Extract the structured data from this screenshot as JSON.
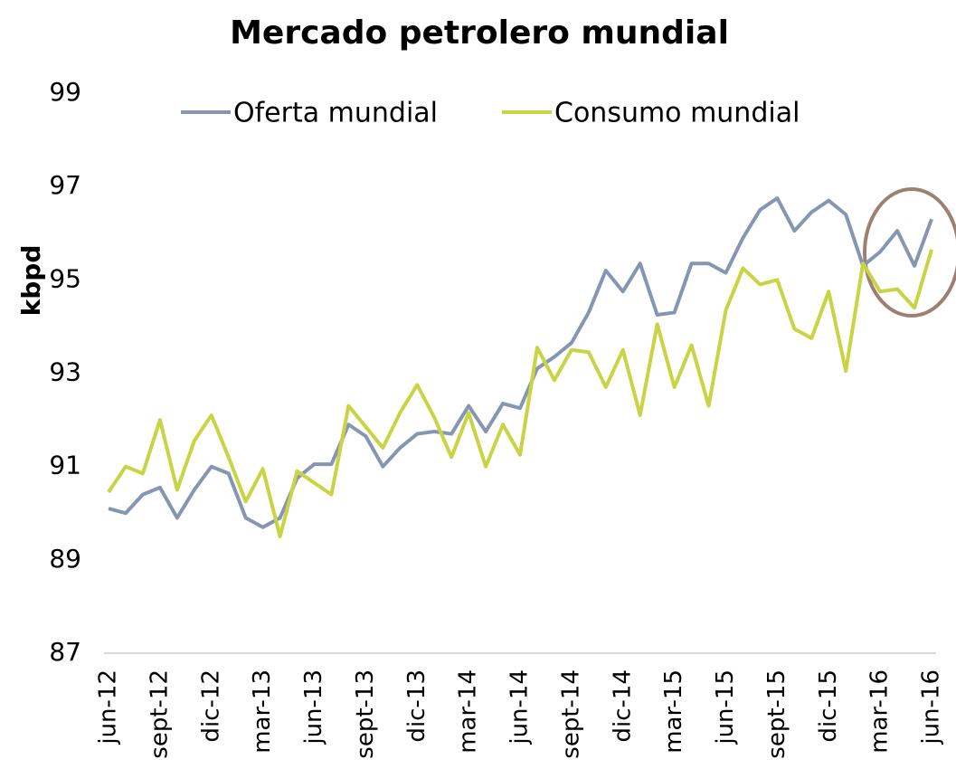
{
  "chart_data": {
    "type": "line",
    "title": "Mercado petrolero mundial",
    "y_label": "kbpd",
    "categories": [
      "jun-12",
      null,
      null,
      "sept-12",
      null,
      null,
      "dic-12",
      null,
      null,
      "mar-13",
      null,
      null,
      "jun-13",
      null,
      null,
      "sept-13",
      null,
      null,
      "dic-13",
      null,
      null,
      "mar-14",
      null,
      null,
      "jun-14",
      null,
      null,
      "sept-14",
      null,
      null,
      "dic-14",
      null,
      null,
      "mar-15",
      null,
      null,
      "jun-15",
      null,
      null,
      "sept-15",
      null,
      null,
      "dic-15",
      null,
      null,
      "mar-16",
      null,
      null,
      "jun-16"
    ],
    "series": [
      {
        "name": "Oferta mundial",
        "color": "#8596b3",
        "values": [
          90.1,
          90.0,
          90.4,
          90.55,
          89.9,
          90.5,
          91.0,
          90.85,
          89.9,
          89.7,
          89.9,
          90.75,
          91.05,
          91.05,
          91.9,
          91.65,
          91.0,
          91.4,
          91.7,
          91.75,
          91.7,
          92.3,
          91.75,
          92.35,
          92.25,
          93.1,
          93.35,
          93.65,
          94.3,
          95.2,
          94.75,
          95.35,
          94.25,
          94.3,
          95.35,
          95.35,
          95.15,
          95.9,
          96.5,
          96.75,
          96.05,
          96.45,
          96.7,
          96.4,
          95.3,
          95.6,
          96.05,
          95.3,
          96.3
        ]
      },
      {
        "name": "Consumo mundial",
        "color": "#c8d444",
        "values": [
          90.45,
          91.0,
          90.85,
          92.0,
          90.5,
          91.55,
          92.1,
          91.2,
          90.25,
          90.95,
          89.5,
          90.9,
          90.65,
          90.4,
          92.3,
          91.85,
          91.4,
          92.15,
          92.75,
          92.05,
          91.2,
          92.15,
          91.0,
          91.9,
          91.25,
          93.55,
          92.85,
          93.5,
          93.45,
          92.7,
          93.5,
          92.1,
          94.05,
          92.7,
          93.6,
          92.3,
          94.35,
          95.25,
          94.9,
          95.0,
          93.95,
          93.75,
          94.75,
          93.05,
          95.35,
          94.75,
          94.8,
          94.4,
          95.65
        ]
      }
    ],
    "ylim": [
      87,
      99
    ],
    "yticks": [
      87,
      89,
      91,
      93,
      95,
      97,
      99
    ],
    "grid": false,
    "legend": "top"
  }
}
